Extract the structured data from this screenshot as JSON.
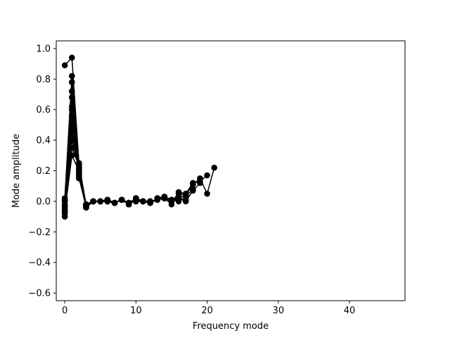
{
  "chart_data": {
    "type": "line",
    "title": "",
    "xlabel": "Frequency mode",
    "ylabel": "Mode amplitude",
    "xlim": [
      -1.2,
      47.8
    ],
    "ylim": [
      -0.65,
      1.05
    ],
    "xticks": [
      0,
      10,
      20,
      30,
      40
    ],
    "yticks": [
      -0.6,
      -0.4,
      -0.2,
      0.0,
      0.2,
      0.4,
      0.6,
      0.8,
      1.0
    ],
    "xtick_labels": [
      "0",
      "10",
      "20",
      "30",
      "40"
    ],
    "ytick_labels": [
      "−0.6",
      "−0.4",
      "−0.2",
      "0.0",
      "0.2",
      "0.4",
      "0.6",
      "0.8",
      "1.0"
    ],
    "grid": false,
    "legend": false,
    "color": "#000000",
    "marker": "circle",
    "series": [
      {
        "x": [
          0,
          1,
          2,
          3,
          4,
          5,
          6,
          7,
          8,
          9,
          10,
          11,
          12,
          13,
          14,
          15,
          16,
          17,
          18,
          19,
          20,
          21
        ],
        "y": [
          0.89,
          0.94,
          0.24,
          -0.04,
          0.0,
          0.0,
          0.01,
          -0.01,
          0.01,
          -0.02,
          0.02,
          0.0,
          -0.01,
          0.02,
          0.03,
          0.0,
          0.05,
          0.04,
          0.11,
          0.15,
          0.05,
          0.22
        ]
      },
      {
        "x": [
          0,
          1,
          2,
          3,
          4,
          5,
          6,
          7,
          8,
          9,
          10,
          11,
          12,
          13,
          14,
          15,
          16,
          17,
          18,
          19,
          20
        ],
        "y": [
          0.02,
          0.82,
          0.25,
          -0.03,
          0.0,
          0.0,
          0.0,
          -0.01,
          0.01,
          -0.01,
          0.01,
          0.0,
          0.0,
          0.01,
          0.02,
          -0.02,
          0.06,
          0.05,
          0.12,
          0.13,
          0.17
        ]
      },
      {
        "x": [
          0,
          1,
          2,
          3,
          4,
          5,
          6,
          7,
          8,
          9,
          10,
          11,
          12,
          13,
          14,
          15,
          16,
          17,
          18,
          19
        ],
        "y": [
          -0.02,
          0.78,
          0.22,
          -0.04,
          0.0,
          0.0,
          0.01,
          -0.01,
          0.01,
          -0.02,
          0.02,
          0.0,
          -0.01,
          0.02,
          0.03,
          0.01,
          0.02,
          0.0,
          0.07,
          0.12
        ]
      },
      {
        "x": [
          0,
          1,
          2,
          3,
          4,
          5,
          6,
          7,
          8,
          9,
          10,
          11,
          12,
          13,
          14,
          15,
          16,
          17,
          18
        ],
        "y": [
          -0.05,
          0.72,
          0.2,
          -0.03,
          0.0,
          0.0,
          0.0,
          -0.01,
          0.01,
          -0.01,
          0.0,
          0.0,
          0.0,
          0.01,
          0.02,
          0.01,
          0.03,
          0.03,
          0.08
        ]
      },
      {
        "x": [
          0,
          1,
          2,
          3,
          4,
          5,
          6,
          7,
          8,
          9,
          10,
          11,
          12,
          13,
          14,
          15,
          16,
          17
        ],
        "y": [
          -0.08,
          0.68,
          0.18,
          -0.02,
          0.0,
          0.0,
          0.01,
          -0.01,
          0.01,
          -0.02,
          0.02,
          0.0,
          -0.01,
          0.02,
          0.03,
          0.0,
          0.02,
          0.01
        ]
      },
      {
        "x": [
          0,
          1,
          2,
          3,
          4,
          5,
          6,
          7,
          8,
          9,
          10,
          11,
          12,
          13,
          14,
          15,
          16
        ],
        "y": [
          -0.1,
          0.62,
          0.16,
          -0.04,
          0.0,
          0.0,
          0.0,
          -0.01,
          0.01,
          -0.01,
          0.01,
          0.0,
          0.0,
          0.01,
          0.02,
          0.01,
          0.0
        ]
      },
      {
        "x": [
          0,
          1,
          2,
          3,
          4,
          5,
          6,
          7,
          8,
          9,
          10,
          11,
          12,
          13,
          14,
          15
        ],
        "y": [
          -0.06,
          0.56,
          0.15,
          -0.03,
          0.0,
          0.0,
          0.01,
          -0.01,
          0.01,
          -0.02,
          0.01,
          0.0,
          -0.01,
          0.02,
          0.02,
          0.0
        ]
      },
      {
        "x": [
          0,
          1,
          2,
          3,
          4,
          5,
          6,
          7,
          8,
          9,
          10,
          11,
          12,
          13,
          14
        ],
        "y": [
          -0.03,
          0.5,
          0.17,
          -0.02,
          0.0,
          0.0,
          0.0,
          -0.01,
          0.01,
          -0.01,
          0.02,
          0.0,
          0.0,
          0.01,
          0.03
        ]
      },
      {
        "x": [
          0,
          1,
          2,
          3,
          4,
          5,
          6,
          7,
          8,
          9,
          10,
          11,
          12,
          13
        ],
        "y": [
          0.0,
          0.45,
          0.19,
          -0.04,
          0.0,
          0.0,
          0.01,
          -0.01,
          0.01,
          -0.02,
          0.01,
          0.0,
          -0.01,
          0.01
        ]
      },
      {
        "x": [
          0,
          1,
          2,
          3,
          4,
          5,
          6,
          7,
          8,
          9,
          10,
          11,
          12
        ],
        "y": [
          0.01,
          0.4,
          0.21,
          -0.03,
          0.0,
          0.0,
          0.0,
          -0.01,
          0.01,
          -0.01,
          0.0,
          0.0,
          0.0
        ]
      },
      {
        "x": [
          0,
          1,
          2,
          3,
          4,
          5,
          6,
          7,
          8,
          9,
          10,
          11
        ],
        "y": [
          -0.04,
          0.35,
          0.23,
          -0.02,
          0.0,
          0.0,
          0.01,
          -0.01,
          0.01,
          -0.02,
          0.02,
          0.0
        ]
      },
      {
        "x": [
          0,
          1,
          2,
          3,
          4,
          5,
          6,
          7,
          8,
          9,
          10
        ],
        "y": [
          -0.07,
          0.3,
          0.2,
          -0.04,
          0.0,
          0.0,
          0.0,
          -0.01,
          0.01,
          -0.01,
          0.01
        ]
      },
      {
        "x": [
          0,
          1,
          2,
          3,
          4,
          5,
          6,
          7,
          8,
          9
        ],
        "y": [
          0.0,
          0.6,
          0.18,
          -0.03,
          0.0,
          0.0,
          0.01,
          -0.01,
          0.01,
          -0.02
        ]
      }
    ]
  }
}
